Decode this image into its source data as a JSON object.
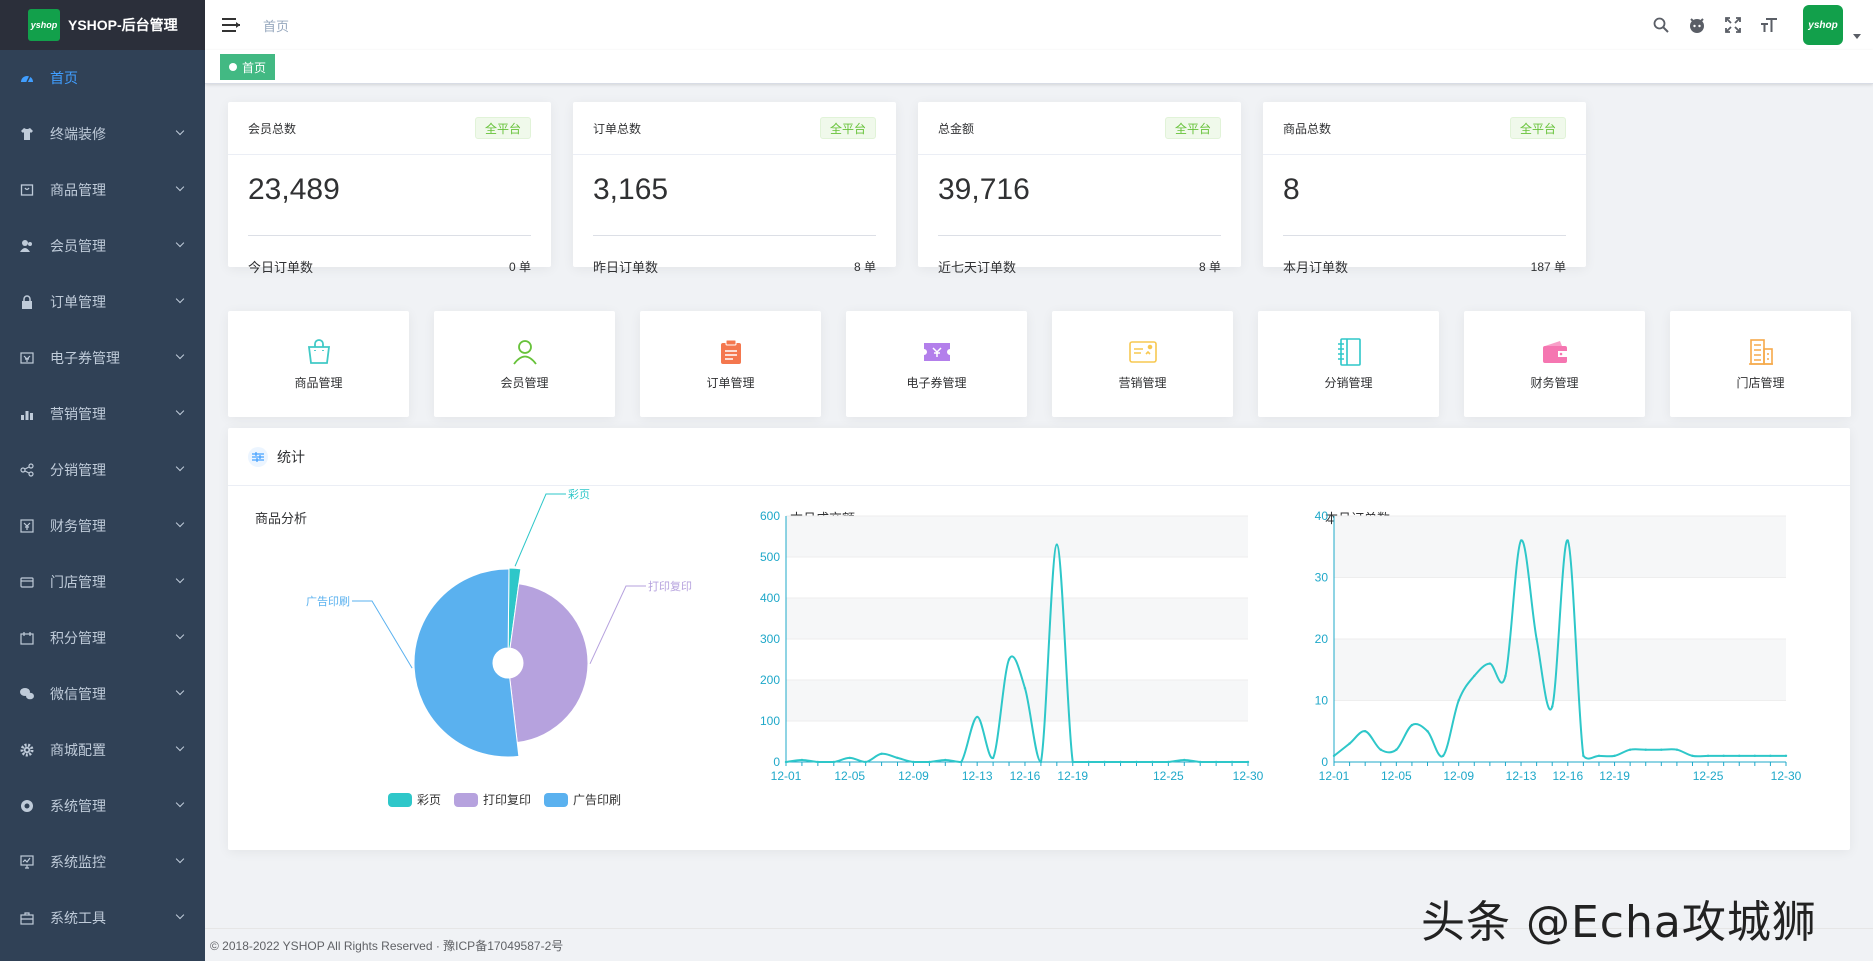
{
  "app": {
    "title": "YSHOP-后台管理",
    "logo_text": "yshop"
  },
  "sidebar": {
    "items": [
      {
        "label": "首页",
        "icon": "dashboard-icon",
        "active": true
      },
      {
        "label": "终端装修",
        "icon": "shirt-icon"
      },
      {
        "label": "商品管理",
        "icon": "goods-icon"
      },
      {
        "label": "会员管理",
        "icon": "users-icon"
      },
      {
        "label": "订单管理",
        "icon": "lock-icon"
      },
      {
        "label": "电子券管理",
        "icon": "coupon-icon"
      },
      {
        "label": "营销管理",
        "icon": "chart-bar-icon"
      },
      {
        "label": "分销管理",
        "icon": "share-icon"
      },
      {
        "label": "财务管理",
        "icon": "finance-icon"
      },
      {
        "label": "门店管理",
        "icon": "store-icon"
      },
      {
        "label": "积分管理",
        "icon": "points-icon"
      },
      {
        "label": "微信管理",
        "icon": "wechat-icon"
      },
      {
        "label": "商城配置",
        "icon": "gear-icon"
      },
      {
        "label": "系统管理",
        "icon": "system-icon"
      },
      {
        "label": "系统监控",
        "icon": "monitor-icon"
      },
      {
        "label": "系统工具",
        "icon": "toolbox-icon"
      }
    ]
  },
  "navbar": {
    "breadcrumb": "首页",
    "avatar_text": "yshop"
  },
  "tags": {
    "active": "首页"
  },
  "stats": [
    {
      "title": "会员总数",
      "badge": "全平台",
      "value": "23,489",
      "foot_label": "今日订单数",
      "foot_value": "0 单"
    },
    {
      "title": "订单总数",
      "badge": "全平台",
      "value": "3,165",
      "foot_label": "昨日订单数",
      "foot_value": "8 单"
    },
    {
      "title": "总金额",
      "badge": "全平台",
      "value": "39,716",
      "foot_label": "近七天订单数",
      "foot_value": "8 单"
    },
    {
      "title": "商品总数",
      "badge": "全平台",
      "value": "8",
      "foot_label": "本月订单数",
      "foot_value": "187 单"
    }
  ],
  "quick": [
    {
      "label": "商品管理",
      "icon": "shopping-bag-icon",
      "color": "#40c9c6"
    },
    {
      "label": "会员管理",
      "icon": "user-icon",
      "color": "#67c23a"
    },
    {
      "label": "订单管理",
      "icon": "clipboard-icon",
      "color": "#f4774e"
    },
    {
      "label": "电子券管理",
      "icon": "ticket-icon",
      "color": "#b37feb"
    },
    {
      "label": "营销管理",
      "icon": "card-icon",
      "color": "#f7c851"
    },
    {
      "label": "分销管理",
      "icon": "notebook-icon",
      "color": "#2ec7c9"
    },
    {
      "label": "财务管理",
      "icon": "wallet-icon",
      "color": "#f576b1"
    },
    {
      "label": "门店管理",
      "icon": "building-icon",
      "color": "#f6a94a"
    }
  ],
  "statistics": {
    "title": "统计"
  },
  "chart_data": [
    {
      "type": "pie",
      "title": "商品分析",
      "categories": [
        "彩页",
        "打印复印",
        "广告印刷"
      ],
      "values": [
        2,
        46,
        52
      ],
      "colors": [
        "#2ec7c9",
        "#b6a2de",
        "#5ab1ef"
      ]
    },
    {
      "type": "line",
      "title": "本月成交额",
      "x": [
        "12-01",
        "12-02",
        "12-03",
        "12-04",
        "12-05",
        "12-06",
        "12-07",
        "12-08",
        "12-09",
        "12-10",
        "12-11",
        "12-12",
        "12-13",
        "12-14",
        "12-15",
        "12-16",
        "12-17",
        "12-18",
        "12-19",
        "12-20",
        "12-21",
        "12-22",
        "12-23",
        "12-24",
        "12-25",
        "12-26",
        "12-27",
        "12-28",
        "12-29",
        "12-30"
      ],
      "x_ticks": [
        "12-01",
        "12-05",
        "12-09",
        "12-13",
        "12-16",
        "12-19",
        "12-25",
        "12-30"
      ],
      "values": [
        0,
        5,
        0,
        0,
        10,
        0,
        20,
        10,
        0,
        0,
        5,
        0,
        110,
        10,
        250,
        180,
        0,
        530,
        0,
        0,
        0,
        0,
        0,
        0,
        0,
        5,
        0,
        0,
        0,
        0
      ],
      "ylim": [
        0,
        600
      ],
      "yticks": [
        0,
        100,
        200,
        300,
        400,
        500,
        600
      ],
      "color": "#2ec7c9"
    },
    {
      "type": "line",
      "title": "本月订单数",
      "x": [
        "12-01",
        "12-02",
        "12-03",
        "12-04",
        "12-05",
        "12-06",
        "12-07",
        "12-08",
        "12-09",
        "12-10",
        "12-11",
        "12-12",
        "12-13",
        "12-14",
        "12-15",
        "12-16",
        "12-17",
        "12-18",
        "12-19",
        "12-20",
        "12-21",
        "12-22",
        "12-23",
        "12-24",
        "12-25",
        "12-26",
        "12-27",
        "12-28",
        "12-29",
        "12-30"
      ],
      "x_ticks": [
        "12-01",
        "12-05",
        "12-09",
        "12-13",
        "12-16",
        "12-19",
        "12-25",
        "12-30"
      ],
      "values": [
        1,
        3,
        5,
        2,
        2,
        6,
        5,
        1,
        10,
        14,
        16,
        14,
        36,
        20,
        9,
        36,
        1,
        1,
        1,
        2,
        2,
        2,
        2,
        1,
        1,
        1,
        1,
        1,
        1,
        1
      ],
      "ylim": [
        0,
        40
      ],
      "yticks": [
        0,
        10,
        20,
        30,
        40
      ],
      "color": "#2ec7c9"
    }
  ],
  "footer": {
    "text": "© 2018-2022 YSHOP All Rights Reserved · 豫ICP备17049587-2号"
  },
  "watermark": "头条 @Echa攻城狮"
}
